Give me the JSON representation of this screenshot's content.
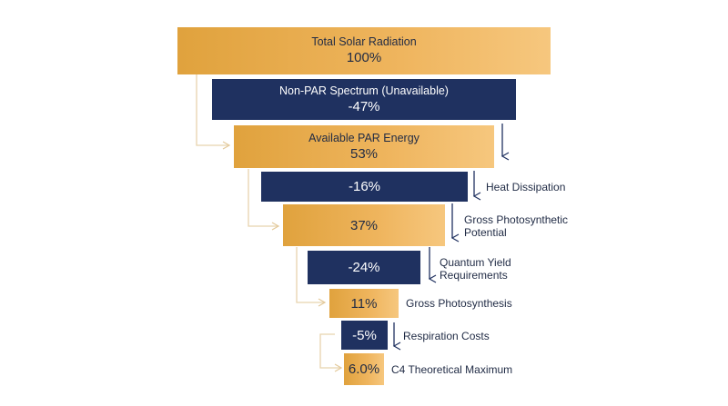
{
  "funnel": {
    "total": {
      "label": "Total Solar Radiation",
      "value": "100%"
    },
    "non_par": {
      "label": "Non-PAR Spectrum (Unavailable)",
      "value": "-47%"
    },
    "par": {
      "label": "Available PAR Energy",
      "value": "53%"
    },
    "heat": {
      "value": "-16%",
      "side_label": "Heat Dissipation"
    },
    "gross_potential": {
      "value": "37%",
      "side_label": "Gross Photosynthetic Potential"
    },
    "quantum": {
      "value": "-24%",
      "side_label": "Quantum Yield Requirements"
    },
    "gross": {
      "value": "11%",
      "side_label": "Gross Photosynthesis"
    },
    "respiration": {
      "value": "-5%",
      "side_label": "Respiration Costs"
    },
    "c4": {
      "value": "6.0%",
      "side_label": "C4 Theoretical Maximum"
    }
  },
  "colors": {
    "gold": "#e0a23d",
    "gold_light": "#f6c77e",
    "navy": "#1f3160",
    "connector_light": "#e8d3ae",
    "arrow_dark": "#1f3160"
  },
  "icons": {
    "loss_arrow": "down-arrow-icon",
    "flow_arrow": "elbow-arrow-icon"
  }
}
